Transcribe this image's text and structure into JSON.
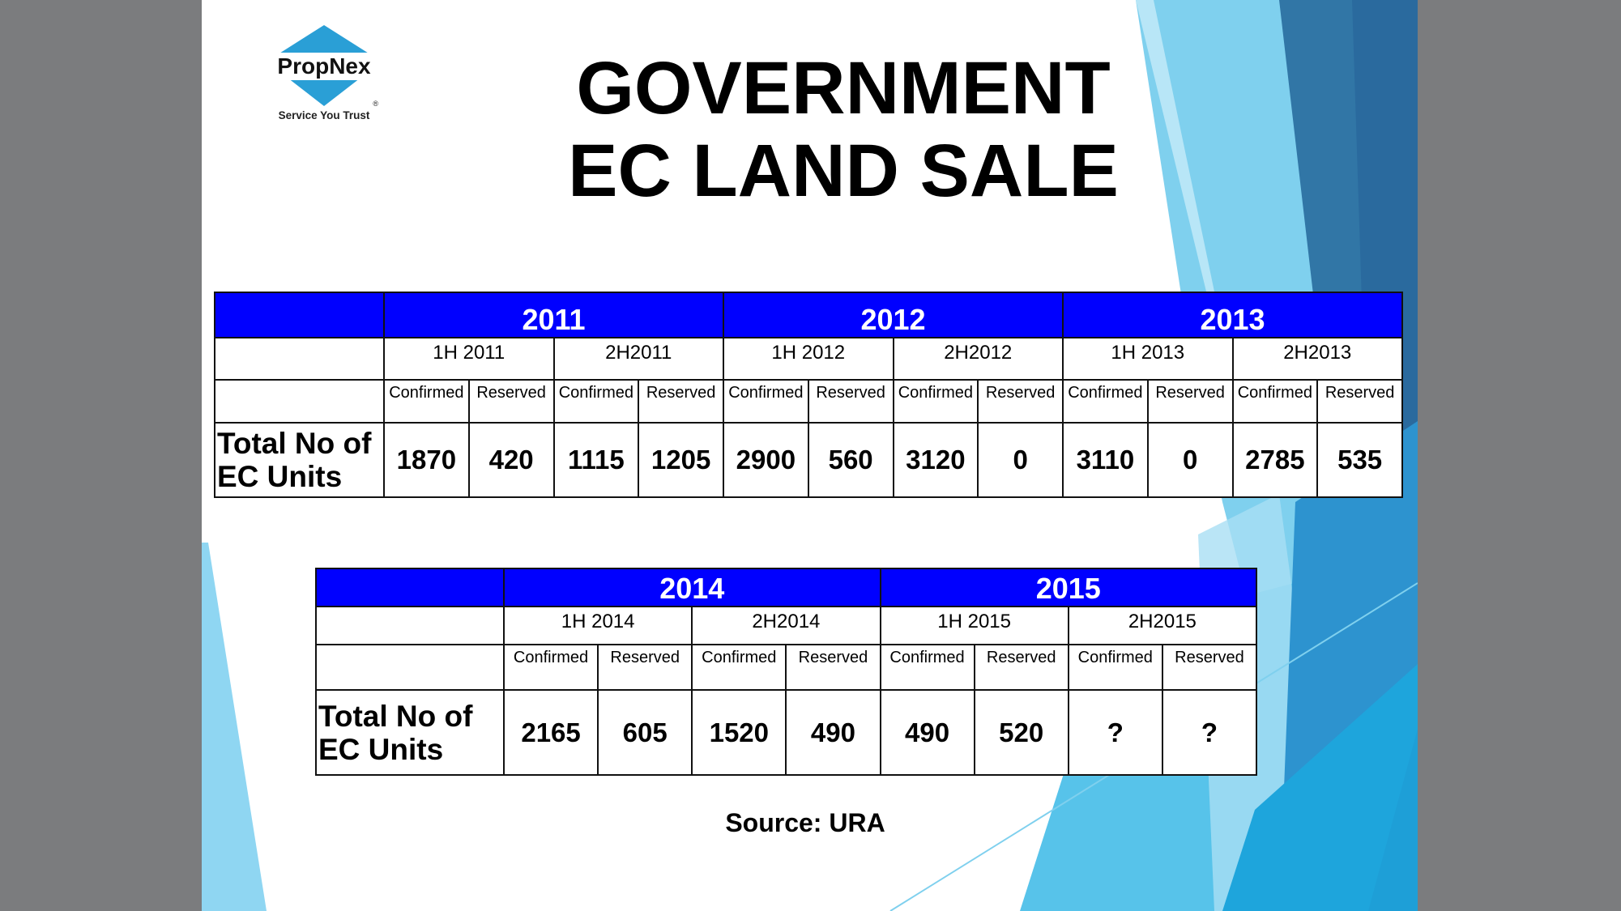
{
  "logo": {
    "brand": "PropNex",
    "tagline": "Service You Trust",
    "registered": "®"
  },
  "title": {
    "line1": "GOVERNMENT",
    "line2": "EC LAND SALE"
  },
  "colors": {
    "header_blue": "#0000ff",
    "logo_blue": "#2a9fd6",
    "background_gray": "#7b7c7e"
  },
  "row_label": "Total No of EC Units",
  "col_labels": {
    "confirmed": "Confirmed",
    "reserved": "Reserved"
  },
  "table1": {
    "years": [
      "2011",
      "2012",
      "2013"
    ],
    "halves": [
      "1H 2011",
      "2H2011",
      "1H 2012",
      "2H2012",
      "1H 2013",
      "2H2013"
    ],
    "values": [
      "1870",
      "420",
      "1115",
      "1205",
      "2900",
      "560",
      "3120",
      "0",
      "3110",
      "0",
      "2785",
      "535"
    ]
  },
  "table2": {
    "years": [
      "2014",
      "2015"
    ],
    "halves": [
      "1H 2014",
      "2H2014",
      "1H 2015",
      "2H2015"
    ],
    "values": [
      "2165",
      "605",
      "1520",
      "490",
      "490",
      "520",
      "?",
      "?"
    ]
  },
  "source": "Source: URA"
}
